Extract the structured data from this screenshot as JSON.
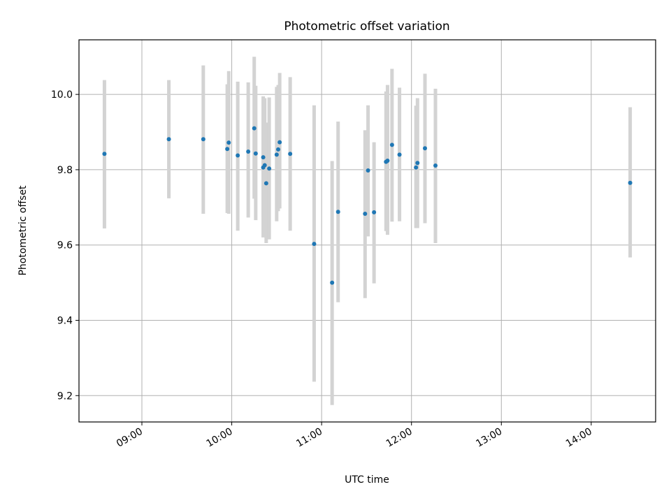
{
  "chart_data": {
    "type": "scatter",
    "title": "Photometric offset variation",
    "xlabel": "UTC time",
    "ylabel": "Photometric offset",
    "x_ticks": [
      "09:00",
      "10:00",
      "11:00",
      "12:00",
      "13:00",
      "14:00"
    ],
    "y_ticks": [
      "9.2",
      "9.4",
      "9.6",
      "9.8",
      "10.0"
    ],
    "xlim": [
      "08:18",
      "14:43"
    ],
    "ylim": [
      9.13,
      10.145
    ],
    "grid": true,
    "errorbar_color": "#d3d3d3",
    "point_color": "#1f77b4",
    "points": [
      {
        "x": "08:35",
        "y": 9.842,
        "low": 9.644,
        "high": 10.038
      },
      {
        "x": "09:18",
        "y": 9.881,
        "low": 9.724,
        "high": 10.038
      },
      {
        "x": "09:41",
        "y": 9.881,
        "low": 9.683,
        "high": 10.077
      },
      {
        "x": "09:57",
        "y": 9.855,
        "low": 9.685,
        "high": 10.027
      },
      {
        "x": "09:58",
        "y": 9.872,
        "low": 9.683,
        "high": 10.062
      },
      {
        "x": "10:04",
        "y": 9.838,
        "low": 9.638,
        "high": 10.034
      },
      {
        "x": "10:11",
        "y": 9.848,
        "low": 9.673,
        "high": 10.032
      },
      {
        "x": "10:15",
        "y": 9.91,
        "low": 9.723,
        "high": 10.1
      },
      {
        "x": "10:16",
        "y": 9.843,
        "low": 9.666,
        "high": 10.023
      },
      {
        "x": "10:21",
        "y": 9.806,
        "low": 9.62,
        "high": 9.99
      },
      {
        "x": "10:21",
        "y": 9.833,
        "low": 9.675,
        "high": 9.995
      },
      {
        "x": "10:22",
        "y": 9.812,
        "low": 9.635,
        "high": 9.99
      },
      {
        "x": "10:23",
        "y": 9.764,
        "low": 9.605,
        "high": 9.925
      },
      {
        "x": "10:25",
        "y": 9.803,
        "low": 9.615,
        "high": 9.992
      },
      {
        "x": "10:30",
        "y": 9.84,
        "low": 9.663,
        "high": 10.02
      },
      {
        "x": "10:31",
        "y": 9.854,
        "low": 9.69,
        "high": 10.025
      },
      {
        "x": "10:32",
        "y": 9.873,
        "low": 9.697,
        "high": 10.057
      },
      {
        "x": "10:39",
        "y": 9.842,
        "low": 9.638,
        "high": 10.046
      },
      {
        "x": "10:55",
        "y": 9.603,
        "low": 9.237,
        "high": 9.971
      },
      {
        "x": "11:07",
        "y": 9.5,
        "low": 9.175,
        "high": 9.823
      },
      {
        "x": "11:11",
        "y": 9.688,
        "low": 9.448,
        "high": 9.928
      },
      {
        "x": "11:29",
        "y": 9.683,
        "low": 9.459,
        "high": 9.905
      },
      {
        "x": "11:31",
        "y": 9.798,
        "low": 9.623,
        "high": 9.971
      },
      {
        "x": "11:35",
        "y": 9.687,
        "low": 9.498,
        "high": 9.873
      },
      {
        "x": "11:43",
        "y": 9.821,
        "low": 9.637,
        "high": 10.008
      },
      {
        "x": "11:44",
        "y": 9.824,
        "low": 9.627,
        "high": 10.025
      },
      {
        "x": "11:47",
        "y": 9.866,
        "low": 9.662,
        "high": 10.068
      },
      {
        "x": "11:52",
        "y": 9.84,
        "low": 9.663,
        "high": 10.018
      },
      {
        "x": "12:03",
        "y": 9.806,
        "low": 9.645,
        "high": 9.97
      },
      {
        "x": "12:04",
        "y": 9.818,
        "low": 9.645,
        "high": 9.99
      },
      {
        "x": "12:09",
        "y": 9.857,
        "low": 9.658,
        "high": 10.055
      },
      {
        "x": "12:16",
        "y": 9.811,
        "low": 9.605,
        "high": 10.015
      },
      {
        "x": "14:26",
        "y": 9.765,
        "low": 9.567,
        "high": 9.966
      }
    ]
  }
}
